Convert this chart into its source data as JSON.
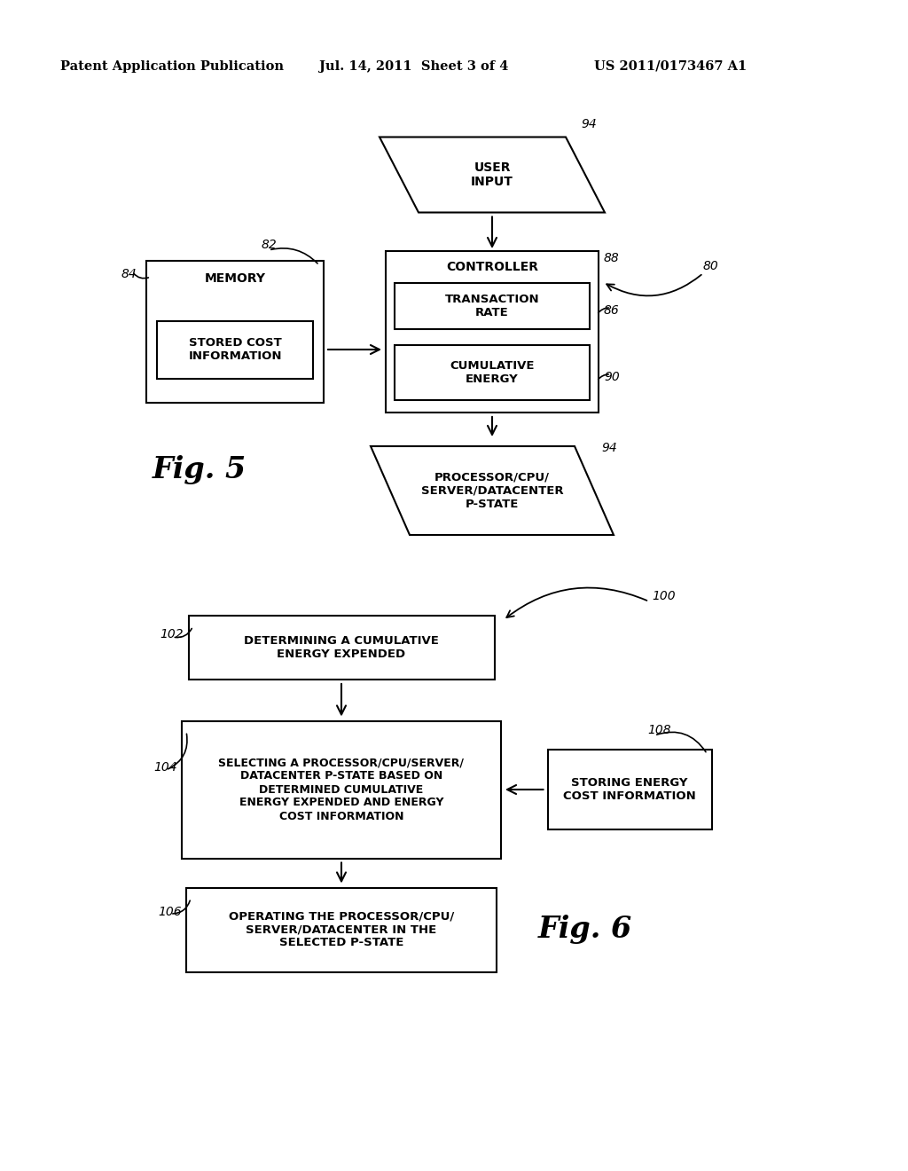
{
  "header_left": "Patent Application Publication",
  "header_mid": "Jul. 14, 2011  Sheet 3 of 4",
  "header_right": "US 2011/0173467 A1",
  "bg_color": "#ffffff",
  "line_color": "#000000",
  "fig5": {
    "label": "Fig. 5",
    "ref_80": "80",
    "ref_82": "82",
    "ref_84": "84",
    "ref_86": "86",
    "ref_88": "88",
    "ref_90": "90",
    "ref_94_top": "94",
    "ref_94_bot": "94",
    "user_input_text": "USER\nINPUT",
    "memory_text": "MEMORY",
    "stored_cost_text": "STORED COST\nINFORMATION",
    "controller_text": "CONTROLLER",
    "transaction_text": "TRANSACTION\nRATE",
    "cumulative_text": "CUMULATIVE\nENERGY",
    "processor_text": "PROCESSOR/CPU/\nSERVER/DATACENTER\nP-STATE"
  },
  "fig6": {
    "label": "Fig. 6",
    "ref_100": "100",
    "ref_102": "102",
    "ref_104": "104",
    "ref_106": "106",
    "ref_108": "108",
    "box1_text": "DETERMINING A CUMULATIVE\nENERGY EXPENDED",
    "box2_text": "SELECTING A PROCESSOR/CPU/SERVER/\nDATACENTER P-STATE BASED ON\nDETERMINED CUMULATIVE\nENERGY EXPENDED AND ENERGY\nCOST INFORMATION",
    "box3_text": "OPERATING THE PROCESSOR/CPU/\nSERVER/DATACENTER IN THE\nSELECTED P-STATE",
    "box4_text": "STORING ENERGY\nCOST INFORMATION"
  }
}
